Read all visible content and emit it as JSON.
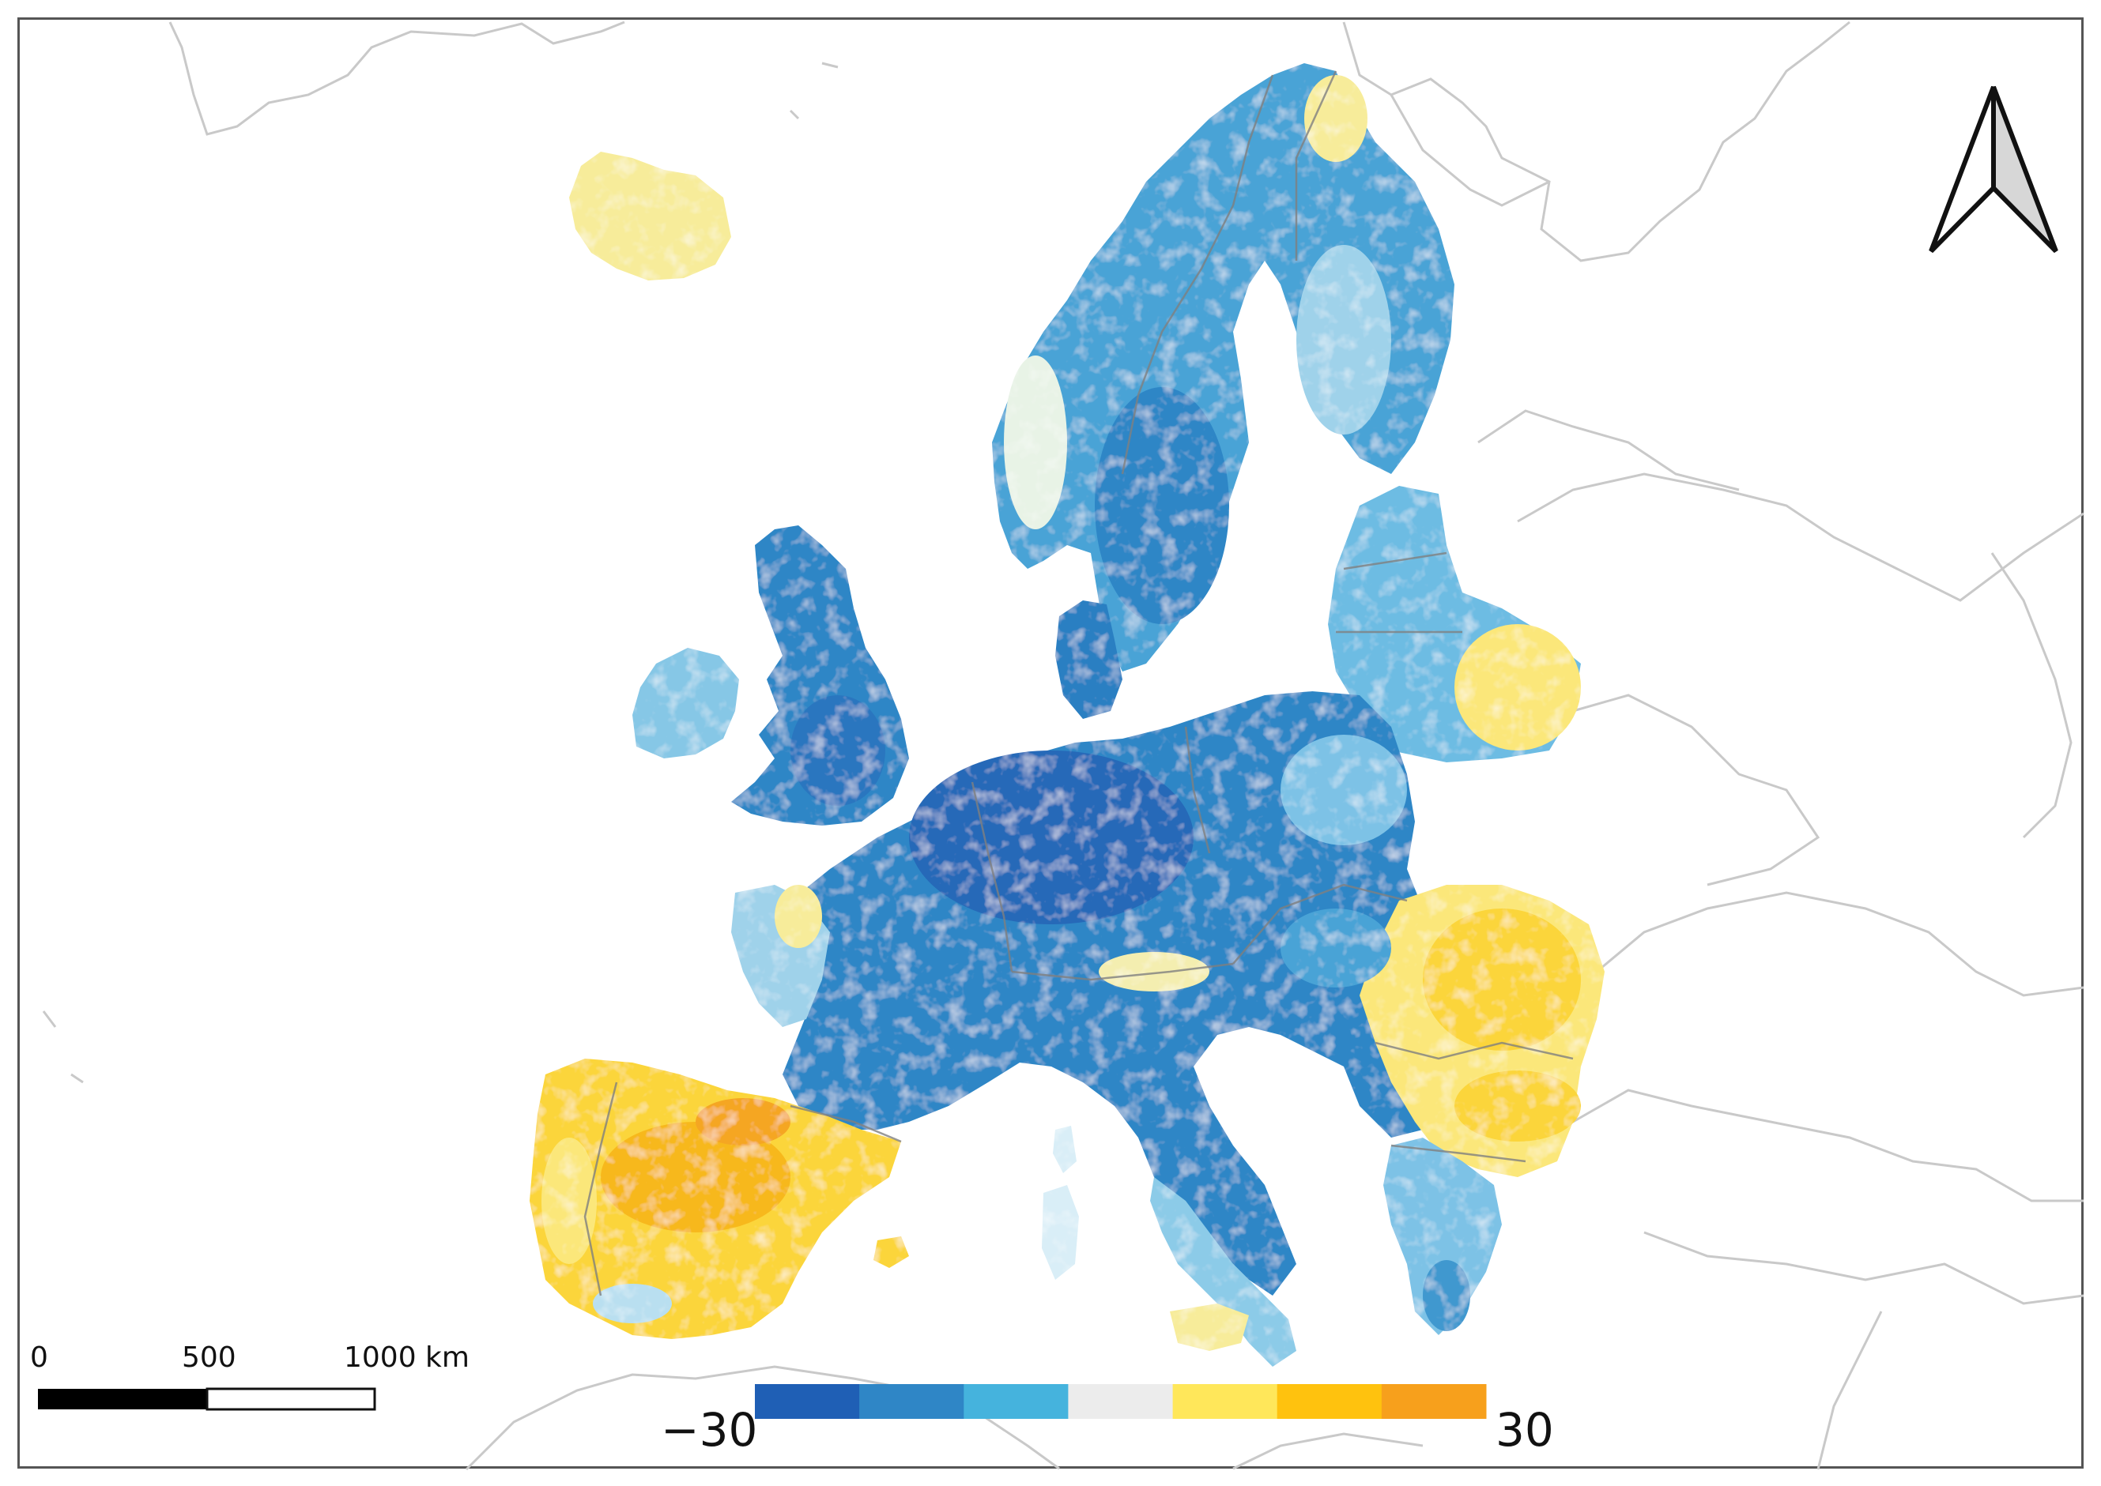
{
  "map": {
    "region": "Europe",
    "colors": {
      "frame": "#555555",
      "coast_outline": "#c9c9c9",
      "country_border": "#7f7f7f",
      "land_outside_data": "#ffffff"
    }
  },
  "north_arrow": {
    "icon": "north-arrow-icon"
  },
  "scale_bar": {
    "labels": [
      "0",
      "500",
      "1000 km"
    ],
    "segments": [
      "black",
      "white"
    ]
  },
  "legend": {
    "min_label": "−30",
    "max_label": "30",
    "min_value": -30,
    "max_value": 30,
    "class_colors": [
      "#1f5fb5",
      "#2f86c6",
      "#45b3dd",
      "#ececec",
      "#ffe75a",
      "#ffc20e",
      "#f7a01c"
    ]
  }
}
